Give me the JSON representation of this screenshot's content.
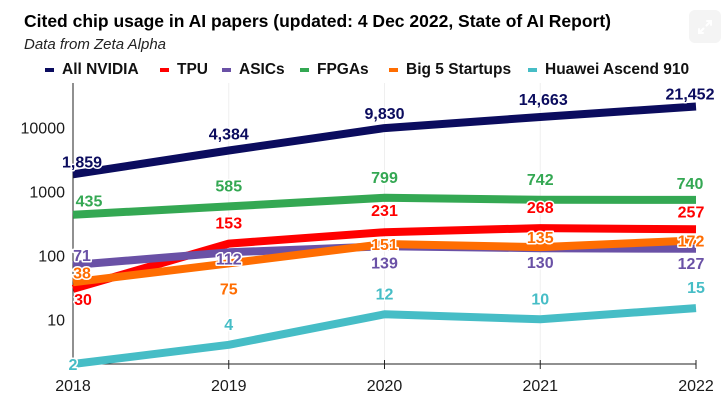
{
  "title": "Cited chip usage in AI papers (updated: 4 Dec 2022, State of AI Report)",
  "subtitle": "Data from Zeta Alpha",
  "expand_button": {
    "icon": "expand-icon"
  },
  "chart_data": {
    "type": "line",
    "title": "Cited chip usage in AI papers (updated: 4 Dec 2022, State of AI Report)",
    "subtitle": "Data from Zeta Alpha",
    "xlabel": "",
    "ylabel": "",
    "x": [
      "2018",
      "2019",
      "2020",
      "2021",
      "2022"
    ],
    "yscale": "log",
    "ylim": [
      2,
      50000
    ],
    "yticks": [
      10,
      100,
      1000,
      10000
    ],
    "ytick_labels": [
      "10",
      "100",
      "1000",
      "10000"
    ],
    "grid": false,
    "legend_position": "top",
    "series": [
      {
        "name": "All NVIDIA",
        "color": "#0b0c5e",
        "values": [
          1859,
          4384,
          9830,
          14663,
          21452
        ],
        "labels": [
          "1,859",
          "4,384",
          "9,830",
          "14,663",
          "21,452"
        ]
      },
      {
        "name": "TPU",
        "color": "#ff0000",
        "values": [
          30,
          153,
          231,
          268,
          257
        ],
        "labels": [
          "30",
          "153",
          "231",
          "268",
          "257"
        ]
      },
      {
        "name": "ASICs",
        "color": "#6a51a6",
        "values": [
          71,
          112,
          139,
          130,
          127
        ],
        "labels": [
          "71",
          "112",
          "139",
          "130",
          "127"
        ]
      },
      {
        "name": "FPGAs",
        "color": "#34a853",
        "values": [
          435,
          585,
          799,
          742,
          740
        ],
        "labels": [
          "435",
          "585",
          "799",
          "742",
          "740"
        ]
      },
      {
        "name": "Big 5 Startups",
        "color": "#ff6d01",
        "values": [
          38,
          75,
          151,
          135,
          172
        ],
        "labels": [
          "38",
          "75",
          "151",
          "135",
          "172"
        ]
      },
      {
        "name": "Huawei Ascend 910",
        "color": "#46bdc6",
        "values": [
          2,
          4,
          12,
          10,
          15
        ],
        "labels": [
          "2",
          "4",
          "12",
          "10",
          "15"
        ]
      }
    ]
  }
}
